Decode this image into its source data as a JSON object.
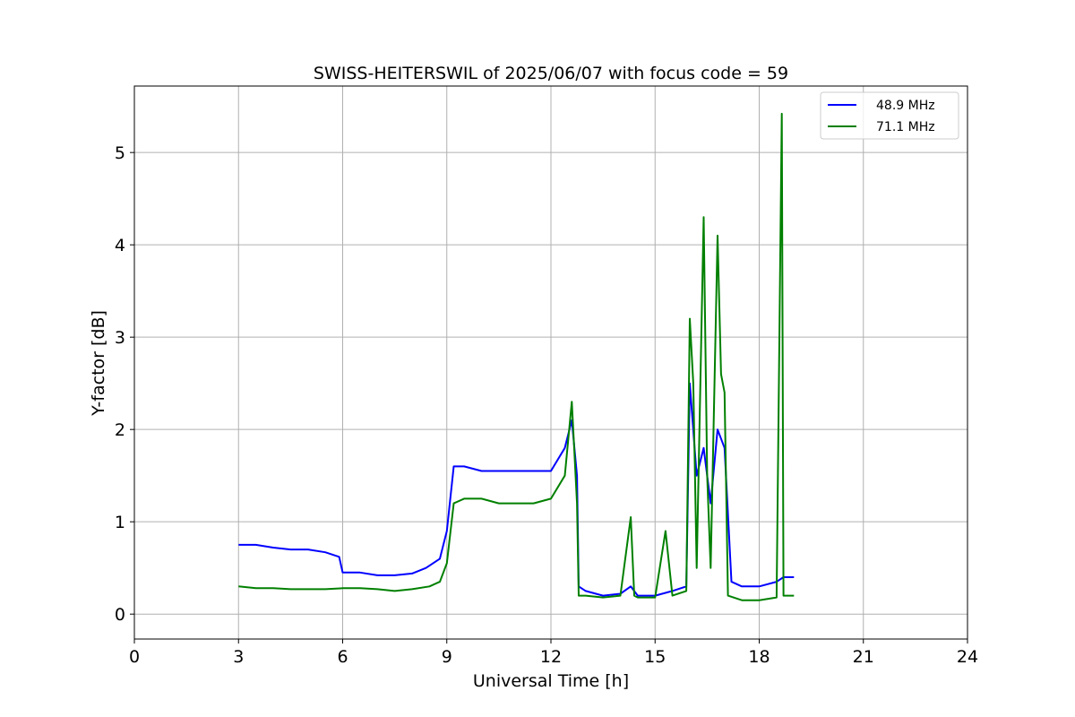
{
  "chart_data": {
    "type": "line",
    "title": "SWISS-HEITERSWIL of 2025/06/07 with focus code = 59",
    "xlabel": "Universal Time [h]",
    "ylabel": "Y-factor [dB]",
    "xlim": [
      0,
      24
    ],
    "ylim": [
      -0.27,
      5.72
    ],
    "xticks": [
      0,
      3,
      6,
      9,
      12,
      15,
      18,
      21,
      24
    ],
    "yticks": [
      0,
      1,
      2,
      3,
      4,
      5
    ],
    "grid": true,
    "legend_position": "top-right",
    "series": [
      {
        "name": "48.9 MHz",
        "color": "#0000ff",
        "x": [
          3.0,
          3.5,
          4.0,
          4.5,
          5.0,
          5.5,
          5.9,
          6.0,
          6.5,
          7.0,
          7.5,
          8.0,
          8.4,
          8.8,
          9.0,
          9.2,
          9.5,
          10.0,
          10.5,
          11.0,
          11.5,
          12.0,
          12.4,
          12.6,
          12.75,
          12.8,
          13.0,
          13.5,
          14.0,
          14.3,
          14.5,
          15.0,
          15.5,
          15.9,
          16.0,
          16.2,
          16.4,
          16.6,
          16.8,
          17.0,
          17.2,
          17.5,
          18.0,
          18.5,
          18.7,
          19.0
        ],
        "y": [
          0.75,
          0.75,
          0.72,
          0.7,
          0.7,
          0.67,
          0.62,
          0.45,
          0.45,
          0.42,
          0.42,
          0.44,
          0.5,
          0.6,
          0.9,
          1.6,
          1.6,
          1.55,
          1.55,
          1.55,
          1.55,
          1.55,
          1.8,
          2.1,
          1.5,
          0.3,
          0.25,
          0.2,
          0.22,
          0.3,
          0.2,
          0.2,
          0.25,
          0.3,
          2.5,
          1.5,
          1.8,
          1.2,
          2.0,
          1.8,
          0.35,
          0.3,
          0.3,
          0.35,
          0.4,
          0.4
        ]
      },
      {
        "name": "71.1 MHz",
        "color": "#008000",
        "x": [
          3.0,
          3.5,
          4.0,
          4.5,
          5.0,
          5.5,
          6.0,
          6.5,
          7.0,
          7.5,
          8.0,
          8.5,
          8.8,
          9.0,
          9.2,
          9.5,
          10.0,
          10.5,
          11.0,
          11.5,
          12.0,
          12.4,
          12.6,
          12.75,
          12.8,
          13.0,
          13.5,
          14.0,
          14.3,
          14.4,
          14.5,
          15.0,
          15.3,
          15.5,
          15.9,
          16.0,
          16.1,
          16.2,
          16.4,
          16.5,
          16.6,
          16.8,
          16.9,
          17.0,
          17.1,
          17.5,
          18.0,
          18.5,
          18.65,
          18.7,
          19.0
        ],
        "y": [
          0.3,
          0.28,
          0.28,
          0.27,
          0.27,
          0.27,
          0.28,
          0.28,
          0.27,
          0.25,
          0.27,
          0.3,
          0.35,
          0.55,
          1.2,
          1.25,
          1.25,
          1.2,
          1.2,
          1.2,
          1.25,
          1.5,
          2.3,
          1.2,
          0.2,
          0.2,
          0.18,
          0.2,
          1.05,
          0.2,
          0.18,
          0.18,
          0.9,
          0.2,
          0.25,
          3.2,
          2.5,
          0.5,
          4.3,
          1.5,
          0.5,
          4.1,
          2.6,
          2.4,
          0.2,
          0.15,
          0.15,
          0.18,
          5.42,
          0.2,
          0.2
        ]
      }
    ]
  }
}
